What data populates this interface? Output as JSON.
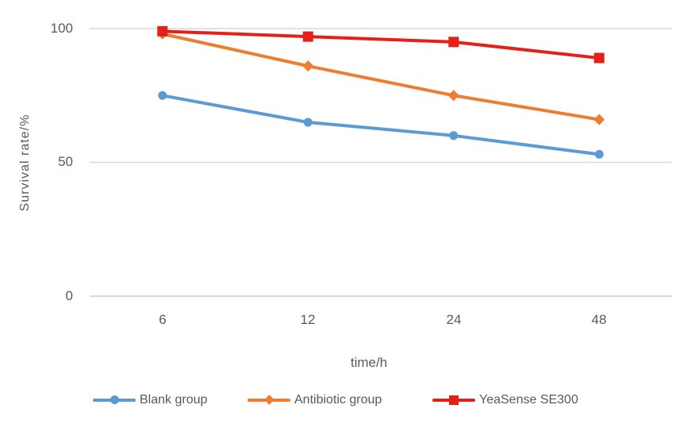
{
  "chart_data": {
    "type": "line",
    "title": "",
    "xlabel": "time/h",
    "ylabel": "Survival rate/%",
    "categories": [
      "6",
      "12",
      "24",
      "48"
    ],
    "ytick_labels": [
      "0",
      "50",
      "100"
    ],
    "ylim": [
      0,
      100
    ],
    "grid": "horizontal",
    "legend_position": "bottom",
    "colors": {
      "gridline": "#D9D9D9",
      "axis_line": "#CDCDCD",
      "label_text": "#595959"
    },
    "series": [
      {
        "name": "Blank group",
        "color": "#5B9BD5",
        "marker": "circle",
        "values": [
          75,
          65,
          60,
          53
        ]
      },
      {
        "name": "Antibiotic group",
        "color": "#ED7D31",
        "marker": "diamond",
        "values": [
          98,
          86,
          75,
          66
        ]
      },
      {
        "name": "YeaSense SE300",
        "color": "#E32119",
        "marker": "square",
        "values": [
          99,
          97,
          95,
          89
        ]
      }
    ]
  }
}
